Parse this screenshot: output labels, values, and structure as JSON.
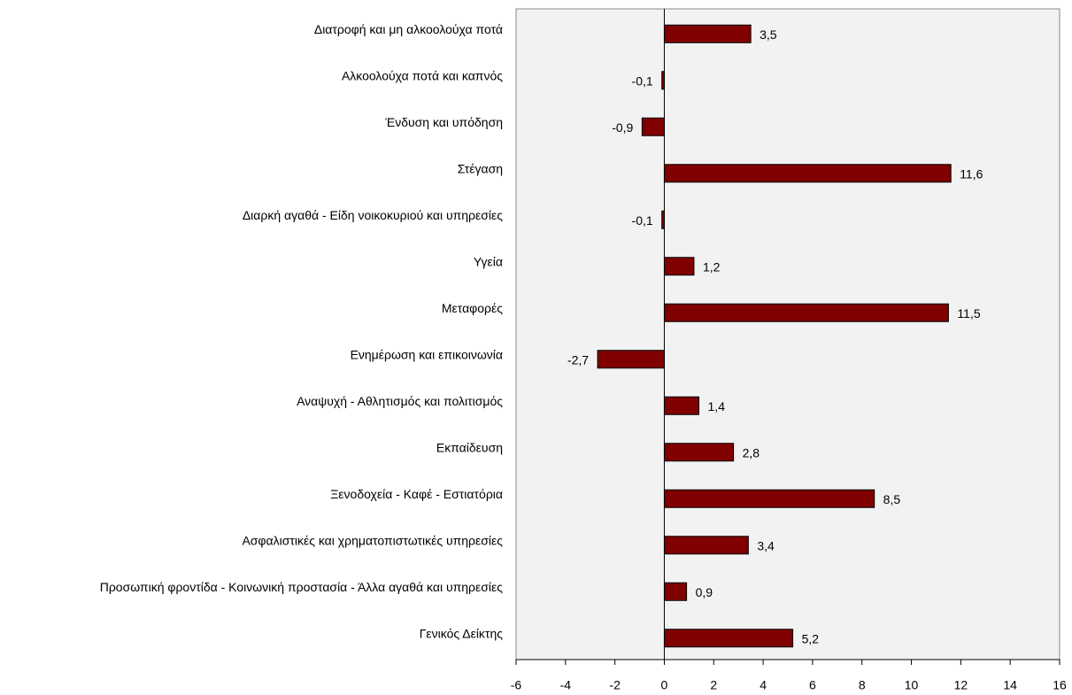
{
  "chart_data": {
    "type": "bar",
    "orientation": "horizontal",
    "categories": [
      "Διατροφή και μη αλκοολούχα ποτά",
      "Αλκοολούχα ποτά και καπνός",
      "Ένδυση και υπόδηση",
      "Στέγαση",
      "Διαρκή αγαθά - Είδη νοικοκυριού και υπηρεσίες",
      "Υγεία",
      "Μεταφορές",
      "Ενημέρωση και επικοινωνία",
      "Αναψυχή - Αθλητισμός και πολιτισμός",
      "Εκπαίδευση",
      "Ξενοδοχεία - Καφέ - Εστιατόρια",
      "Ασφαλιστικές και χρηματοπιστωτικές υπηρεσίες",
      "Προσωπική φροντίδα - Κοινωνική προστασία - Άλλα αγαθά και υπηρεσίες",
      "Γενικός Δείκτης"
    ],
    "values": [
      3.5,
      -0.1,
      -0.9,
      11.6,
      -0.1,
      1.2,
      11.5,
      -2.7,
      1.4,
      2.8,
      8.5,
      3.4,
      0.9,
      5.2
    ],
    "value_labels": [
      "3,5",
      "-0,1",
      "-0,9",
      "11,6",
      "-0,1",
      "1,2",
      "11,5",
      "-2,7",
      "1,4",
      "2,8",
      "8,5",
      "3,4",
      "0,9",
      "5,2"
    ],
    "color": "#800000",
    "xlim": [
      -6,
      16
    ],
    "xticks": [
      -6,
      -4,
      -2,
      0,
      2,
      4,
      6,
      8,
      10,
      12,
      14,
      16
    ]
  }
}
